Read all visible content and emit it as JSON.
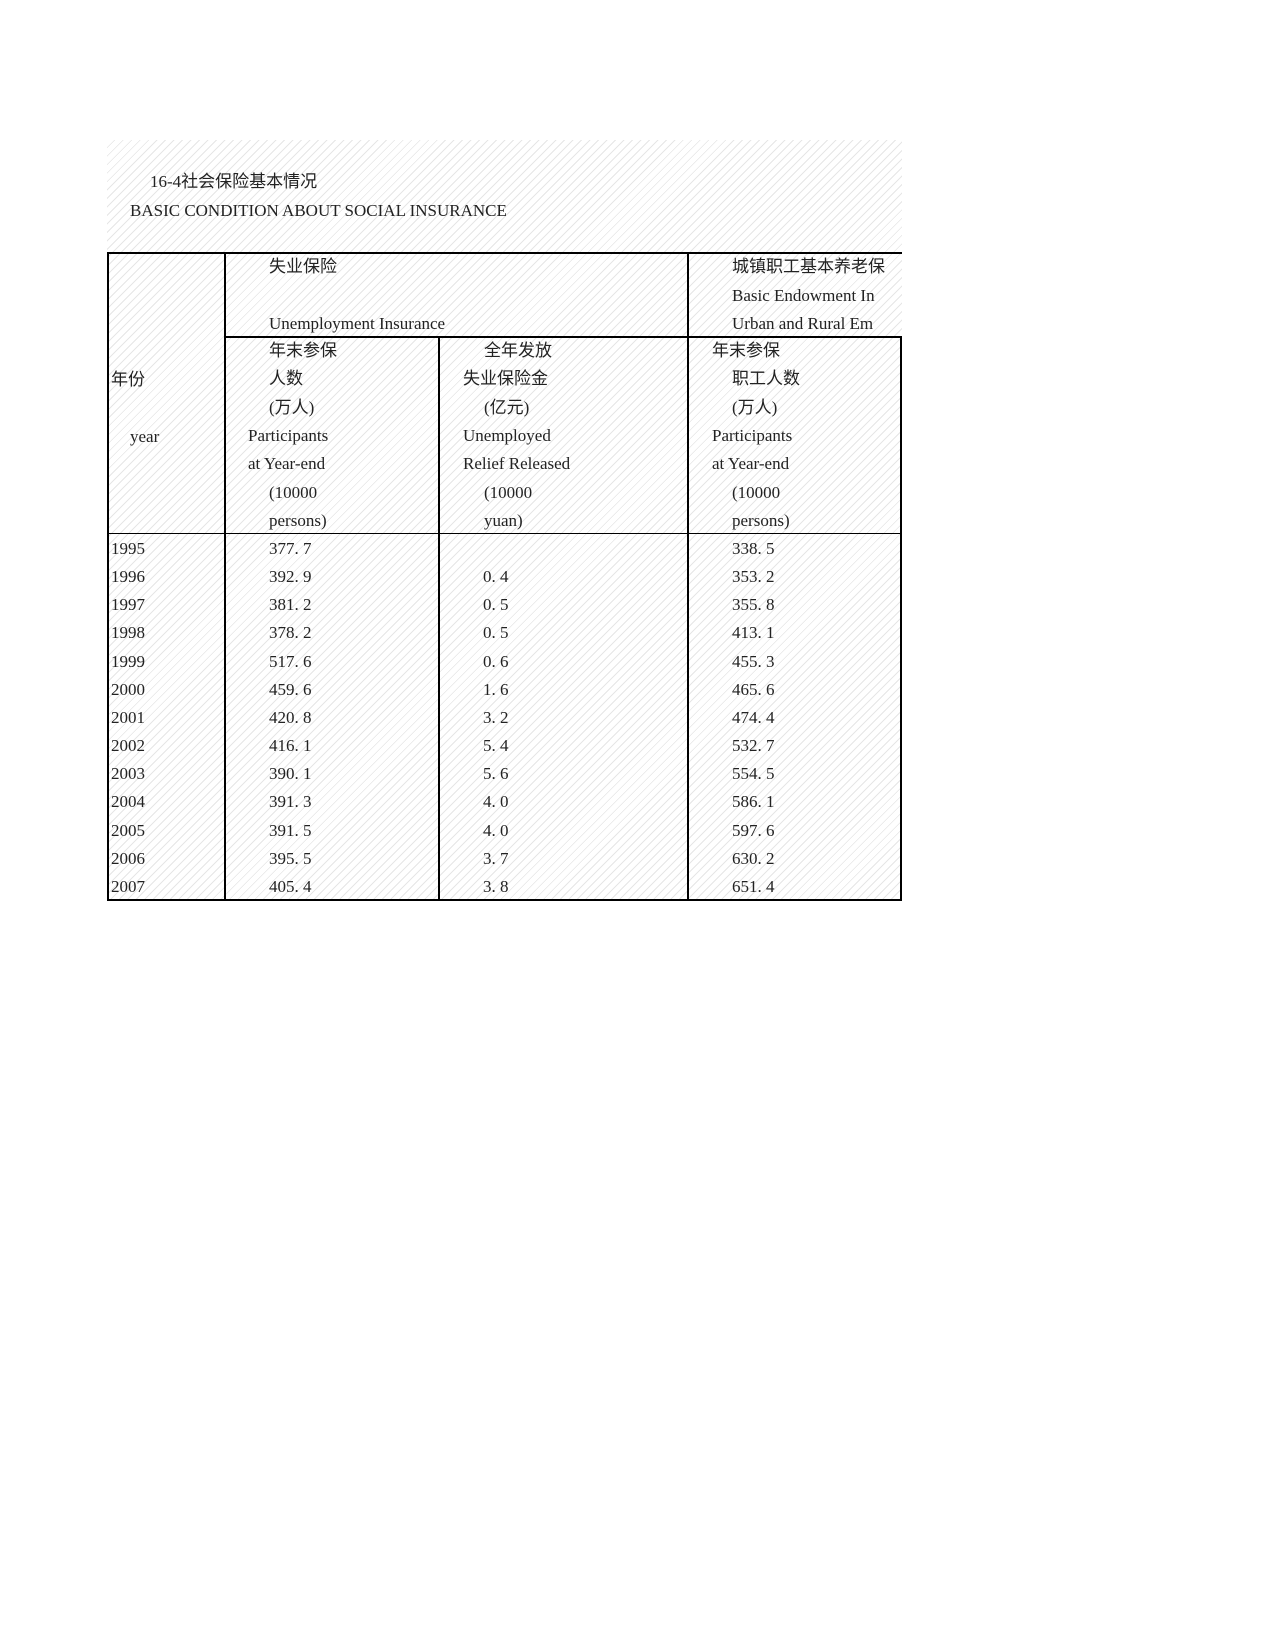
{
  "title_cn": "16-4社会保险基本情况",
  "title_en": "BASIC CONDITION ABOUT SOCIAL INSURANCE",
  "header": {
    "year_cn": "年份",
    "year_en": "year",
    "unemployment": {
      "group_cn": "失业保险",
      "group_en": "Unemployment Insurance",
      "col1": [
        "年末参保",
        "人数",
        "(万人)",
        "Participants",
        "at Year-end",
        "(10000",
        "persons)"
      ],
      "col2": [
        "全年发放",
        "失业保险金",
        "(亿元)",
        "Unemployed",
        "Relief Released",
        "(10000",
        "yuan)"
      ]
    },
    "endowment": {
      "group_cn": "城镇职工基本养老保",
      "group_en_1": "Basic Endowment In",
      "group_en_2": "Urban and Rural Em",
      "col3": [
        "年末参保",
        "职工人数",
        "(万人)",
        "Participants",
        "at Year-end",
        "(10000",
        "persons)"
      ]
    }
  },
  "rows": [
    {
      "year": "1995",
      "participants": "377. 7",
      "relief": "",
      "endowment": "338. 5"
    },
    {
      "year": "1996",
      "participants": "392. 9",
      "relief": "0. 4",
      "endowment": "353. 2"
    },
    {
      "year": "1997",
      "participants": "381. 2",
      "relief": "0. 5",
      "endowment": "355. 8"
    },
    {
      "year": "1998",
      "participants": "378. 2",
      "relief": "0. 5",
      "endowment": "413. 1"
    },
    {
      "year": "1999",
      "participants": "517. 6",
      "relief": "0. 6",
      "endowment": "455. 3"
    },
    {
      "year": "2000",
      "participants": "459. 6",
      "relief": "1. 6",
      "endowment": "465. 6"
    },
    {
      "year": "2001",
      "participants": "420. 8",
      "relief": "3. 2",
      "endowment": "474. 4"
    },
    {
      "year": "2002",
      "participants": "416. 1",
      "relief": "5. 4",
      "endowment": "532. 7"
    },
    {
      "year": "2003",
      "participants": "390. 1",
      "relief": "5. 6",
      "endowment": "554. 5"
    },
    {
      "year": "2004",
      "participants": "391. 3",
      "relief": "4. 0",
      "endowment": "586. 1"
    },
    {
      "year": "2005",
      "participants": "391. 5",
      "relief": "4. 0",
      "endowment": "597. 6"
    },
    {
      "year": "2006",
      "participants": "395. 5",
      "relief": "3. 7",
      "endowment": "630. 2"
    },
    {
      "year": "2007",
      "participants": "405. 4",
      "relief": "3. 8",
      "endowment": "651. 4"
    }
  ]
}
